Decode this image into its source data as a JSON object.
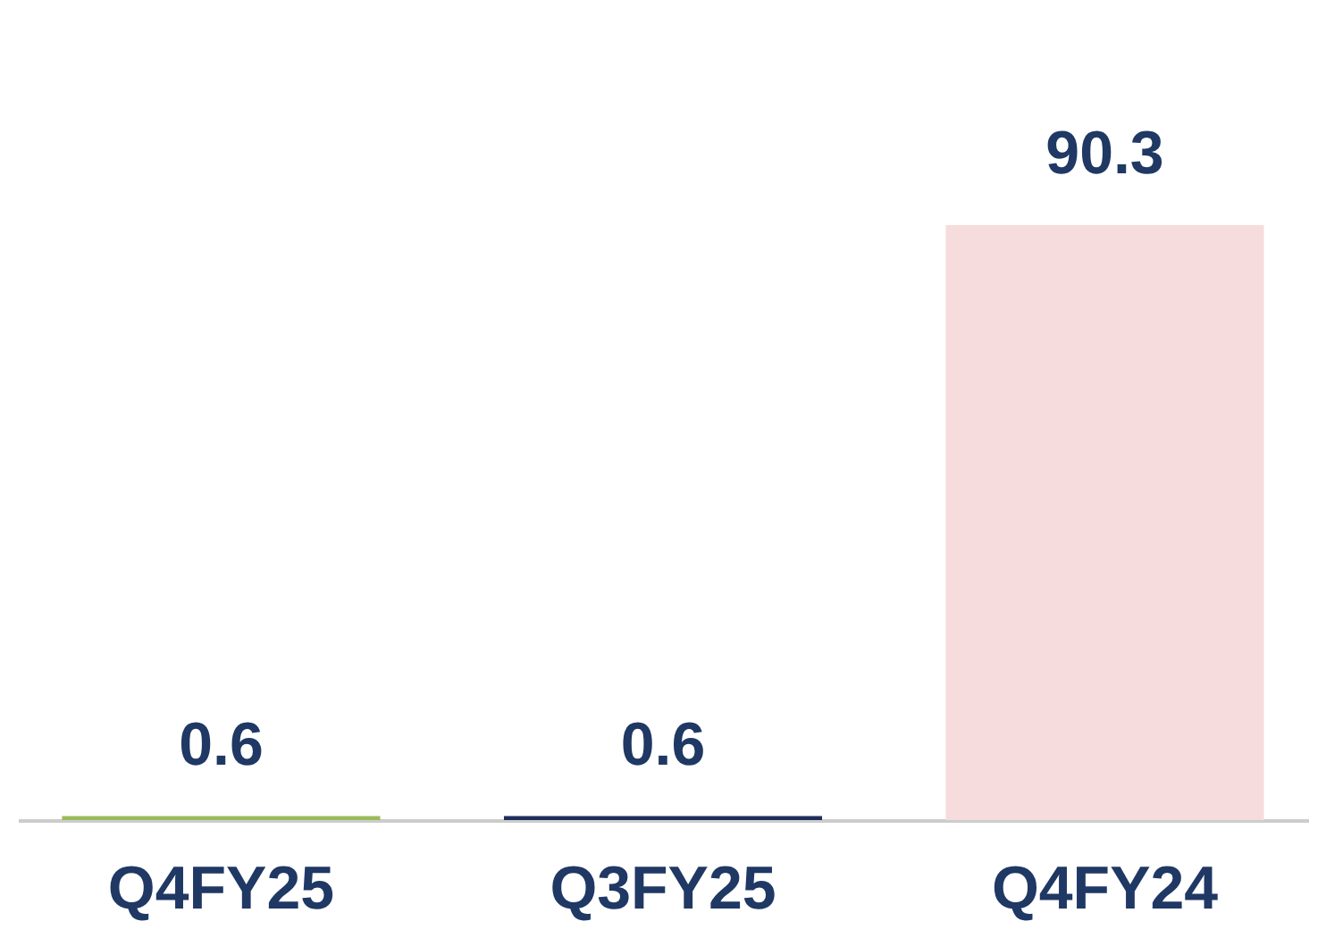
{
  "chart_data": {
    "type": "bar",
    "categories": [
      "Q4FY25",
      "Q3FY25",
      "Q4FY24"
    ],
    "values": [
      0.6,
      0.6,
      90.3
    ],
    "colors": [
      "#9bbb59",
      "#1f2d5c",
      "#f6dcdc"
    ],
    "data_labels": true,
    "grid": false
  }
}
